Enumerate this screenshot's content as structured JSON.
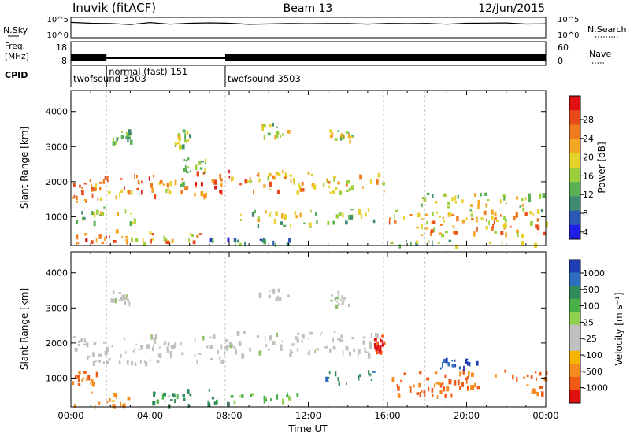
{
  "header": {
    "site": "Inuvik (fitACF)",
    "beam": "Beam 13",
    "date": "12/Jun/2015"
  },
  "chart_data": [
    {
      "type": "line",
      "panel": "noise",
      "left_label": "N.Sky",
      "right_label": "N.Search",
      "left_ticks": [
        "10^5",
        "10^0"
      ],
      "right_ticks": [
        "10^5",
        "10^0"
      ],
      "x_range_hours": [
        0,
        24
      ],
      "series": [
        {
          "values_by_hour": [
            3.9,
            3.9,
            3.7,
            3.5,
            3.8,
            3.6,
            3.7,
            3.7,
            3.6,
            3.6,
            3.7,
            3.7,
            3.6,
            3.7,
            3.7,
            3.6,
            3.8,
            3.6,
            3.7,
            3.6,
            3.7,
            3.8,
            3.7,
            3.6,
            3.7
          ]
        }
      ]
    },
    {
      "type": "bar",
      "panel": "frequency",
      "left_label_lines": [
        "Freq.",
        "[MHz]"
      ],
      "right_label": "Nave",
      "left_ticks": [
        "18",
        "8"
      ],
      "right_ticks": [
        "60",
        "0"
      ],
      "x_range_hours": [
        0,
        24
      ],
      "segments": [
        {
          "start": 0.0,
          "end": 1.8,
          "level": "high"
        },
        {
          "start": 1.8,
          "end": 7.8,
          "level": "low"
        },
        {
          "start": 7.8,
          "end": 24.0,
          "level": "high"
        }
      ]
    },
    {
      "type": "table",
      "panel": "cpid",
      "label": "CPID",
      "entries": [
        {
          "start": 0.0,
          "text": "twofsound 3503",
          "row": 1
        },
        {
          "start": 1.8,
          "text": "normal (fast) 151",
          "row": 0
        },
        {
          "start": 7.8,
          "text": "twofsound 3503",
          "row": 1
        }
      ]
    },
    {
      "type": "heatmap",
      "panel": "power",
      "ylabel": "Slant Range [km]",
      "yticks": [
        1000,
        2000,
        3000,
        4000
      ],
      "ylim": [
        180,
        4600
      ],
      "x_range_hours": [
        0,
        24
      ],
      "colorbar_label": "Power [dB]",
      "colorbar_ticks": [
        4,
        8,
        12,
        16,
        20,
        24,
        28
      ],
      "colorbar_colors": [
        "#1e1ee6",
        "#2d57b4",
        "#3f8a73",
        "#58b255",
        "#9ccf3c",
        "#e6d22a",
        "#f5a623",
        "#f07b1e",
        "#e84a1a",
        "#e01010"
      ],
      "regions": [
        {
          "x0": 0.0,
          "x1": 4.4,
          "y0": 1450,
          "y1": 2250,
          "value": 22
        },
        {
          "x0": 4.4,
          "x1": 5.8,
          "y0": 1650,
          "y1": 2150,
          "value": 18
        },
        {
          "x0": 6.2,
          "x1": 8.0,
          "y0": 1500,
          "y1": 2350,
          "value": 25
        },
        {
          "x0": 8.0,
          "x1": 12.0,
          "y0": 1700,
          "y1": 2350,
          "value": 20
        },
        {
          "x0": 12.0,
          "x1": 15.8,
          "y0": 1700,
          "y1": 2250,
          "value": 18
        },
        {
          "x0": 0.0,
          "x1": 3.0,
          "y0": 250,
          "y1": 650,
          "value": 25
        },
        {
          "x0": 3.0,
          "x1": 6.5,
          "y0": 250,
          "y1": 600,
          "value": 20
        },
        {
          "x0": 6.5,
          "x1": 11.0,
          "y0": 250,
          "y1": 450,
          "value": 8
        },
        {
          "x0": 0.2,
          "x1": 3.2,
          "y0": 850,
          "y1": 1300,
          "value": 14
        },
        {
          "x0": 8.5,
          "x1": 12.5,
          "y0": 700,
          "y1": 1200,
          "value": 14
        },
        {
          "x0": 12.8,
          "x1": 15.5,
          "y0": 850,
          "y1": 1250,
          "value": 12
        },
        {
          "x0": 16.0,
          "x1": 24.0,
          "y0": 500,
          "y1": 1200,
          "value": 20
        },
        {
          "x0": 17.5,
          "x1": 24.0,
          "y0": 1200,
          "y1": 1700,
          "value": 14
        },
        {
          "x0": 2.0,
          "x1": 3.0,
          "y0": 3150,
          "y1": 3500,
          "value": 12
        },
        {
          "x0": 5.2,
          "x1": 6.0,
          "y0": 3000,
          "y1": 3500,
          "value": 12
        },
        {
          "x0": 9.5,
          "x1": 11.0,
          "y0": 3300,
          "y1": 3700,
          "value": 14
        },
        {
          "x0": 13.0,
          "x1": 14.2,
          "y0": 3100,
          "y1": 3500,
          "value": 14
        },
        {
          "x0": 5.6,
          "x1": 6.8,
          "y0": 2300,
          "y1": 2700,
          "value": 12
        },
        {
          "x0": 16.0,
          "x1": 24.0,
          "y0": 200,
          "y1": 350,
          "value": 12
        }
      ]
    },
    {
      "type": "heatmap",
      "panel": "velocity",
      "ylabel": "Slant Range [km]",
      "yticks": [
        1000,
        2000,
        3000,
        4000
      ],
      "ylim": [
        180,
        4600
      ],
      "x_range_hours": [
        0,
        24
      ],
      "xticks": [
        "00:00",
        "04:00",
        "08:00",
        "12:00",
        "16:00",
        "20:00",
        "00:00"
      ],
      "xlabel": "Time UT",
      "colorbar_label": "Velocity [m s⁻¹]",
      "colorbar_ticks": [
        1000,
        500,
        100,
        25,
        -25,
        -100,
        -500,
        -1000
      ],
      "colorbar_colors": [
        "#1e3cb4",
        "#2d6fbe",
        "#2f8c5a",
        "#48b248",
        "#8fd14f",
        "#c0c0c0",
        "#c0c0c0",
        "#f5b400",
        "#f58a1e",
        "#f05a14",
        "#e01010"
      ],
      "regions": [
        {
          "x0": 0.0,
          "x1": 4.4,
          "y0": 1450,
          "y1": 2250,
          "value": 0
        },
        {
          "x0": 4.4,
          "x1": 5.8,
          "y0": 1650,
          "y1": 2150,
          "value": 0
        },
        {
          "x0": 6.2,
          "x1": 8.0,
          "y0": 1500,
          "y1": 2350,
          "value": 0
        },
        {
          "x0": 8.0,
          "x1": 15.8,
          "y0": 1700,
          "y1": 2350,
          "value": 0
        },
        {
          "x0": 15.3,
          "x1": 15.8,
          "y0": 1750,
          "y1": 2250,
          "value": -700
        },
        {
          "x0": 0.0,
          "x1": 1.4,
          "y0": 850,
          "y1": 1300,
          "value": -300
        },
        {
          "x0": 0.0,
          "x1": 3.0,
          "y0": 250,
          "y1": 650,
          "value": -150
        },
        {
          "x0": 4.0,
          "x1": 8.0,
          "y0": 250,
          "y1": 700,
          "value": 150
        },
        {
          "x0": 8.0,
          "x1": 11.5,
          "y0": 300,
          "y1": 600,
          "value": 60
        },
        {
          "x0": 12.8,
          "x1": 15.5,
          "y0": 850,
          "y1": 1250,
          "value": 200
        },
        {
          "x0": 16.0,
          "x1": 19.5,
          "y0": 500,
          "y1": 1200,
          "value": -300
        },
        {
          "x0": 19.5,
          "x1": 24.0,
          "y0": 600,
          "y1": 1250,
          "value": -300
        },
        {
          "x0": 18.5,
          "x1": 20.5,
          "y0": 1300,
          "y1": 1600,
          "value": 400
        },
        {
          "x0": 2.0,
          "x1": 3.0,
          "y0": 3150,
          "y1": 3500,
          "value": 0
        },
        {
          "x0": 9.5,
          "x1": 11.0,
          "y0": 3300,
          "y1": 3700,
          "value": 0
        },
        {
          "x0": 13.0,
          "x1": 14.2,
          "y0": 3100,
          "y1": 3500,
          "value": 0
        }
      ]
    }
  ]
}
